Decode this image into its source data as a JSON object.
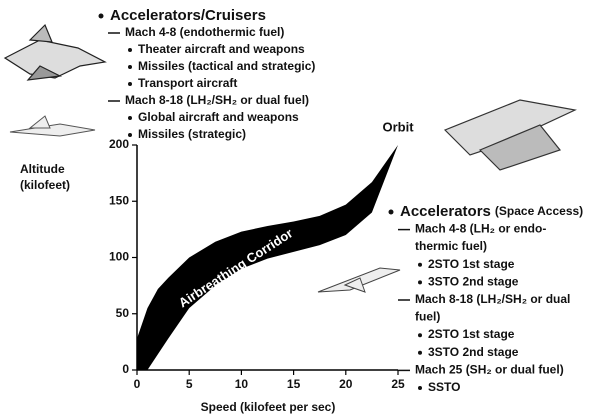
{
  "chart_data": {
    "type": "band",
    "xlabel": "Speed (kilofeet per sec)",
    "ylabel": [
      "Altitude",
      "(kilofeet)"
    ],
    "xlim": [
      0,
      25
    ],
    "xticks": [
      0,
      5,
      10,
      15,
      20,
      25
    ],
    "ylim": [
      0,
      200
    ],
    "yticks": [
      0,
      50,
      100,
      150,
      200
    ],
    "color": "#000000",
    "corridor": {
      "label": "Airbreathing Corridor",
      "x": [
        0,
        1,
        2,
        3,
        5,
        7.5,
        10,
        12.5,
        15,
        17.5,
        20,
        22.5,
        25
      ],
      "upper": [
        28,
        55,
        72,
        82,
        100,
        114,
        123,
        128,
        132,
        137,
        147,
        167,
        200
      ],
      "lower": [
        0,
        0,
        14,
        28,
        55,
        75,
        90,
        99,
        105,
        111,
        120,
        140,
        200
      ]
    },
    "annotation": "Orbit"
  },
  "top_list": [
    {
      "kind": "head",
      "text": "Accelerators/Cruisers"
    },
    {
      "kind": "dash",
      "text": "Mach 4-8 (endothermic fuel)"
    },
    {
      "kind": "dot",
      "text": "Theater aircraft and weapons"
    },
    {
      "kind": "dot",
      "text": "Missiles (tactical and strategic)"
    },
    {
      "kind": "dot",
      "text": "Transport aircraft"
    },
    {
      "kind": "dash",
      "text": "Mach 8-18 (LH₂/SH₂ or dual fuel)"
    },
    {
      "kind": "dot",
      "text": "Global aircraft and weapons"
    },
    {
      "kind": "dot",
      "text": "Missiles (strategic)"
    }
  ],
  "right_list": [
    {
      "kind": "head",
      "text": "Accelerators",
      "note": "(Space Access)"
    },
    {
      "kind": "dash",
      "text": "Mach 4-8 (LH₂ or endo-"
    },
    {
      "kind": "cont",
      "text": "thermic fuel)"
    },
    {
      "kind": "dot",
      "text": "2STO 1st stage"
    },
    {
      "kind": "dot",
      "text": "3STO 2nd stage"
    },
    {
      "kind": "dash",
      "text": "Mach 8-18 (LH₂/SH₂ or dual"
    },
    {
      "kind": "cont",
      "text": "fuel)"
    },
    {
      "kind": "dot",
      "text": "2STO 1st stage"
    },
    {
      "kind": "dot",
      "text": "3STO 2nd stage"
    },
    {
      "kind": "dash",
      "text": "Mach 25 (SH₂ or dual fuel)"
    },
    {
      "kind": "dot",
      "text": "SSTO"
    }
  ]
}
